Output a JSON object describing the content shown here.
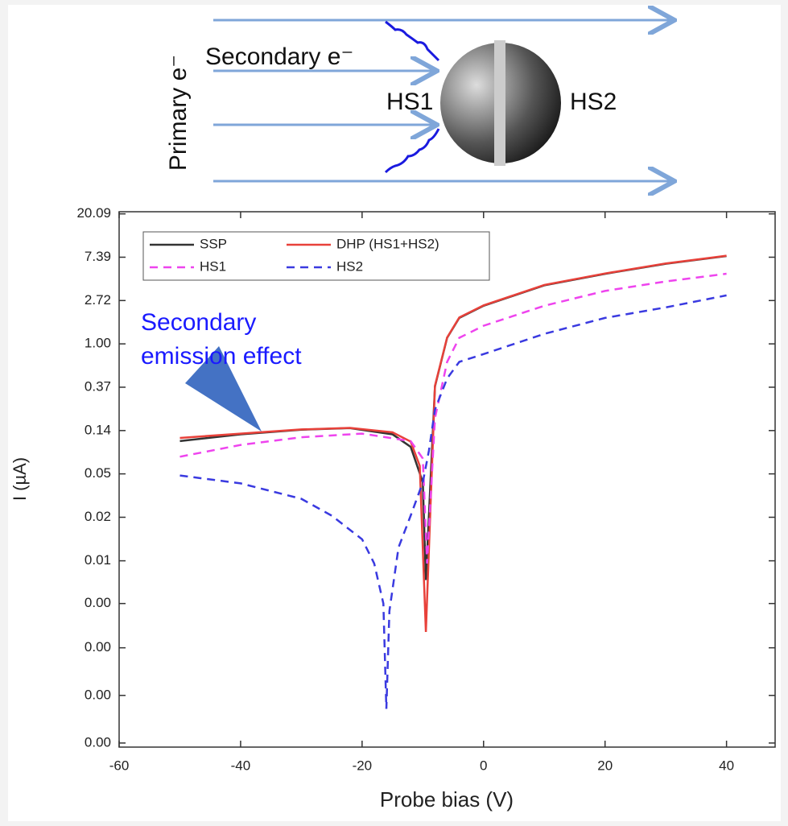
{
  "diagram": {
    "primary_label": "Primary e⁻",
    "secondary_label": "Secondary e⁻",
    "hs1": "HS1",
    "hs2": "HS2"
  },
  "chart_data": {
    "type": "line",
    "log_scale": true,
    "legend": "upper left",
    "xlabel": "Probe bias (V)",
    "ylabel": "I (µA)",
    "annotation_lines": [
      "Secondary",
      "emission effect"
    ],
    "xlim": [
      -60,
      48
    ],
    "xticks": [
      -60,
      -40,
      -20,
      0,
      20,
      40
    ],
    "ylim": [
      9.1e-05,
      21.1
    ],
    "yticks": [
      {
        "value": 20.0855,
        "label": "20.09"
      },
      {
        "value": 7.3891,
        "label": "7.39"
      },
      {
        "value": 2.7183,
        "label": "2.72"
      },
      {
        "value": 1,
        "label": "1.00"
      },
      {
        "value": 0.3679,
        "label": "0.37"
      },
      {
        "value": 0.1353,
        "label": "0.14"
      },
      {
        "value": 0.0498,
        "label": "0.05"
      },
      {
        "value": 0.0183,
        "label": "0.02"
      },
      {
        "value": 0.0067,
        "label": "0.01"
      },
      {
        "value": 0.0025,
        "label": "0.00"
      },
      {
        "value": 0.0009,
        "label": "0.00"
      },
      {
        "value": 0.0003,
        "label": "0.00"
      },
      {
        "value": 0.0001,
        "label": "0.00"
      }
    ],
    "series": [
      {
        "name": "SSP",
        "color": "#333333",
        "dash": false,
        "x": [
          -50,
          -40,
          -30,
          -22,
          -15,
          -12,
          -10,
          -9.5,
          -8,
          -6,
          -4,
          0,
          10,
          20,
          30,
          40
        ],
        "values": [
          0.106,
          0.124,
          0.138,
          0.143,
          0.124,
          0.093,
          0.041,
          0.0043,
          0.375,
          1.15,
          1.82,
          2.41,
          3.86,
          5.04,
          6.35,
          7.6
        ]
      },
      {
        "name": "DHP (HS1+HS2)",
        "color": "#e8413a",
        "dash": false,
        "x": [
          -50,
          -40,
          -30,
          -22,
          -15,
          -12,
          -10.5,
          -9.5,
          -8,
          -6,
          -4,
          0,
          10,
          20,
          30,
          40
        ],
        "values": [
          0.114,
          0.126,
          0.139,
          0.144,
          0.13,
          0.105,
          0.06,
          0.0013,
          0.38,
          1.16,
          1.84,
          2.43,
          3.9,
          5.08,
          6.4,
          7.65
        ]
      },
      {
        "name": "HS1",
        "color": "#ee44ee",
        "dash": true,
        "x": [
          -50,
          -40,
          -30,
          -20,
          -12,
          -10,
          -9.3,
          -8,
          -6,
          -4,
          0,
          10,
          20,
          30,
          40
        ],
        "values": [
          0.074,
          0.097,
          0.116,
          0.126,
          0.106,
          0.071,
          0.0063,
          0.18,
          0.66,
          1.15,
          1.52,
          2.41,
          3.39,
          4.22,
          5.05
        ]
      },
      {
        "name": "HS2",
        "color": "#3a3ae0",
        "dash": true,
        "x": [
          -50,
          -40,
          -30,
          -25,
          -20,
          -18,
          -16.5,
          -16,
          -15.5,
          -14,
          -12,
          -10,
          -9,
          -8,
          -6,
          -4,
          0,
          10,
          20,
          30,
          40
        ],
        "values": [
          0.048,
          0.04,
          0.028,
          0.019,
          0.011,
          0.0063,
          0.0025,
          0.00022,
          0.0021,
          0.0091,
          0.019,
          0.041,
          0.085,
          0.22,
          0.45,
          0.66,
          0.79,
          1.26,
          1.82,
          2.32,
          3.06
        ]
      }
    ]
  }
}
